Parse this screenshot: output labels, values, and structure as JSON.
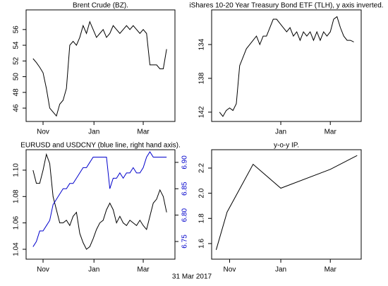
{
  "caption": "31 Mar 2017",
  "chart_data": [
    {
      "type": "line",
      "title": "Brent Crude (BZ).",
      "x": [
        -12,
        -8,
        -4,
        0,
        4,
        8,
        12,
        16,
        20,
        24,
        28,
        32,
        36,
        40,
        44,
        48,
        52,
        56,
        60,
        64,
        68,
        72,
        76,
        80,
        84,
        88,
        92,
        96,
        100,
        104,
        108,
        112,
        116,
        120,
        124,
        128,
        132,
        136,
        140,
        144,
        148
      ],
      "series": [
        {
          "color": "#000000",
          "values": [
            52.3,
            51.8,
            51.2,
            50.5,
            48.5,
            46.0,
            45.5,
            45.0,
            46.5,
            47.0,
            48.5,
            54.0,
            54.5,
            54.0,
            55.0,
            56.5,
            55.5,
            57.0,
            56.0,
            55.0,
            55.5,
            56.0,
            55.0,
            55.5,
            56.5,
            56.0,
            55.5,
            56.0,
            56.5,
            56.0,
            56.5,
            56.0,
            55.5,
            56.0,
            55.5,
            51.5,
            51.5,
            51.5,
            51.0,
            51.0,
            53.5
          ]
        }
      ],
      "xlim": [
        -20.3,
        158
      ],
      "xticks": [
        {
          "value": 0,
          "label": "Nov"
        },
        {
          "value": 61,
          "label": "Jan"
        },
        {
          "value": 120,
          "label": "Mar"
        }
      ],
      "ylim": [
        44.3,
        58.5
      ],
      "yticks": [
        46,
        48,
        50,
        52,
        54,
        56
      ],
      "y_inverted": false
    },
    {
      "type": "line",
      "title": "iShares 10-20 Year Treasury Bond ETF (TLH), y axis inverted.",
      "x": [
        -12,
        -8,
        -4,
        0,
        4,
        8,
        12,
        16,
        20,
        24,
        28,
        32,
        36,
        40,
        44,
        48,
        52,
        56,
        60,
        64,
        68,
        72,
        76,
        80,
        84,
        88,
        92,
        96,
        100,
        104,
        108,
        112,
        116,
        120,
        124,
        128,
        132,
        136,
        140,
        144,
        148
      ],
      "series": [
        {
          "color": "#000000",
          "values": [
            142.0,
            142.5,
            141.8,
            141.5,
            141.8,
            141.0,
            136.5,
            135.5,
            134.5,
            134.0,
            133.5,
            133.0,
            134.0,
            133.0,
            133.0,
            132.0,
            131.0,
            131.0,
            131.5,
            132.0,
            132.5,
            132.0,
            133.0,
            132.5,
            133.5,
            132.5,
            133.0,
            132.5,
            133.5,
            132.5,
            133.5,
            132.5,
            133.0,
            132.5,
            131.0,
            130.7,
            132.0,
            133.0,
            133.5,
            133.5,
            133.7
          ]
        }
      ],
      "xlim": [
        -21.4,
        156.8
      ],
      "xticks": [
        {
          "value": 61,
          "label": "Jan"
        },
        {
          "value": 120,
          "label": "Mar"
        }
      ],
      "ylim": [
        129.9,
        143.1
      ],
      "yticks": [
        134,
        138,
        142
      ],
      "y_inverted": true
    },
    {
      "type": "line",
      "title": "EURUSD and USDCNY (blue line, right hand axis).",
      "x": [
        -12,
        -8,
        -4,
        0,
        4,
        8,
        12,
        16,
        20,
        24,
        28,
        32,
        36,
        40,
        44,
        48,
        52,
        56,
        60,
        64,
        68,
        72,
        76,
        80,
        84,
        88,
        92,
        96,
        100,
        104,
        108,
        112,
        116,
        120,
        124,
        128,
        132,
        136,
        140,
        144,
        148
      ],
      "series": [
        {
          "color": "#000000",
          "values": [
            1.1,
            1.09,
            1.09,
            1.1,
            1.112,
            1.105,
            1.08,
            1.07,
            1.06,
            1.06,
            1.062,
            1.058,
            1.065,
            1.068,
            1.052,
            1.045,
            1.04,
            1.042,
            1.048,
            1.055,
            1.06,
            1.062,
            1.07,
            1.075,
            1.07,
            1.06,
            1.065,
            1.06,
            1.058,
            1.062,
            1.06,
            1.058,
            1.062,
            1.058,
            1.055,
            1.065,
            1.075,
            1.078,
            1.085,
            1.08,
            1.068
          ]
        },
        {
          "color": "#0000cc",
          "axis": "y2",
          "values": [
            6.74,
            6.75,
            6.77,
            6.77,
            6.78,
            6.79,
            6.82,
            6.83,
            6.84,
            6.85,
            6.85,
            6.86,
            6.86,
            6.87,
            6.88,
            6.89,
            6.89,
            6.9,
            6.91,
            6.91,
            6.91,
            6.91,
            6.91,
            6.85,
            6.87,
            6.87,
            6.88,
            6.87,
            6.88,
            6.88,
            6.89,
            6.88,
            6.88,
            6.89,
            6.91,
            6.92,
            6.91,
            6.91,
            6.91,
            6.91,
            6.91
          ]
        }
      ],
      "xlim": [
        -20.3,
        158
      ],
      "xticks": [
        {
          "value": 0,
          "label": "Nov"
        },
        {
          "value": 61,
          "label": "Jan"
        },
        {
          "value": 120,
          "label": "Mar"
        }
      ],
      "ylim": [
        1.0325,
        1.1155
      ],
      "yticks": [
        1.04,
        1.06,
        1.08,
        {
          "value": 1.1,
          "label": "1.10"
        }
      ],
      "y_inverted": false,
      "y2lim": [
        6.7165,
        6.924
      ],
      "y2ticks": [
        6.75,
        {
          "value": 6.8,
          "label": "6.80"
        },
        6.85,
        {
          "value": 6.9,
          "label": "6.90"
        }
      ]
    },
    {
      "type": "line",
      "title": "y-o-y IP.",
      "x": [
        -16,
        -3,
        28,
        61,
        120,
        152
      ],
      "series": [
        {
          "color": "#000000",
          "values": [
            1.55,
            1.85,
            2.23,
            2.04,
            2.19,
            2.3
          ]
        }
      ],
      "xlim": [
        -21.4,
        156.8
      ],
      "xticks": [
        {
          "value": 0,
          "label": "Nov"
        },
        {
          "value": 61,
          "label": "Jan"
        },
        {
          "value": 120,
          "label": "Mar"
        }
      ],
      "ylim": [
        1.476,
        2.346
      ],
      "yticks": [
        1.6,
        1.8,
        {
          "value": 2.0,
          "label": "2.0"
        },
        2.2
      ],
      "y_inverted": false
    }
  ]
}
